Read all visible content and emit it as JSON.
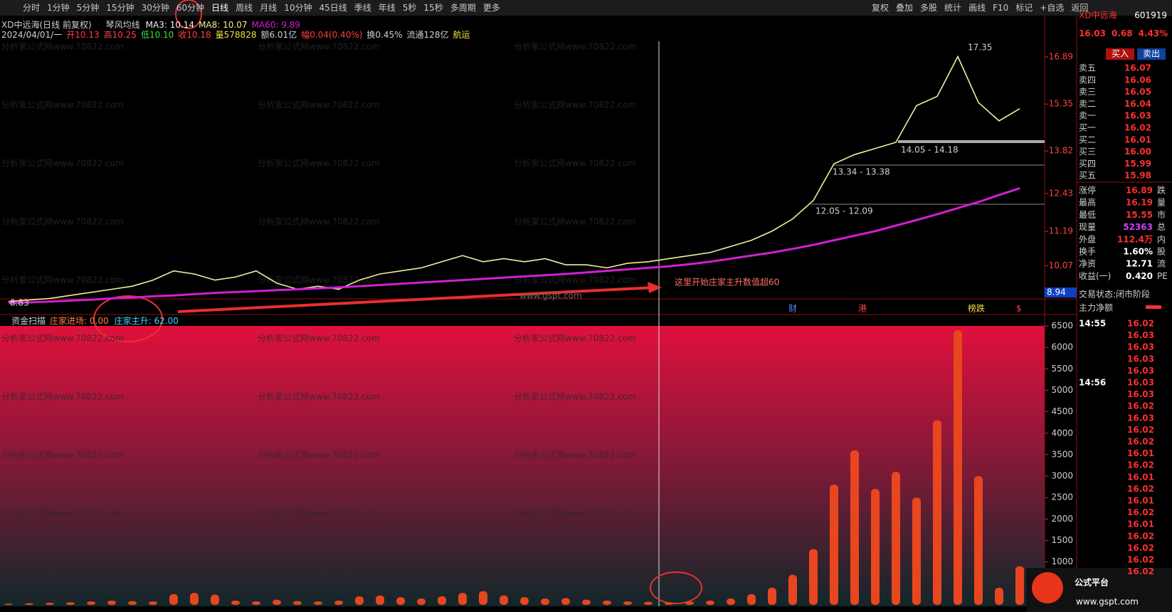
{
  "toolbar": {
    "periods": [
      "分时",
      "1分钟",
      "5分钟",
      "15分钟",
      "30分钟",
      "60分钟",
      "日线",
      "周线",
      "月线",
      "10分钟",
      "45日线",
      "季线",
      "年线",
      "5秒",
      "15秒",
      "多周期",
      "更多"
    ],
    "selected": 6,
    "right": [
      "复权",
      "叠加",
      "多股",
      "统计",
      "画线",
      "F10",
      "标记",
      "+自选",
      "返回"
    ]
  },
  "info": {
    "name": "XD中远海(日线 前复权)",
    "indicator": "琴风均线",
    "ma3": "MA3: 10.14",
    "ma8": "MA8: 10.07",
    "ma60": "MA60: 9.89",
    "bar": [
      "2024/04/01/一",
      "开10.13",
      "高10.25",
      "低10.10",
      "收10.18",
      "量578828",
      "额6.01亿",
      "幅0.04(0.40%)",
      "换0.45%",
      "流通128亿",
      "航运"
    ]
  },
  "annotations": {
    "high": "17.35",
    "range1": "14.05 - 14.18",
    "range2": "13.34 - 13.38",
    "range3": "12.05 - 12.09",
    "low": "8.83",
    "cursor_price": "8.94",
    "note": "这里开始庄家主升数值超60",
    "markers": [
      "财",
      "港",
      "榜跌",
      "$"
    ],
    "site": "www.gspt.com"
  },
  "watermark": "分析家公式网www.70822.com",
  "indicator_header": {
    "name": "资金扫描",
    "enter": "庄家进场: 0.00",
    "rise": "庄家主升: 62.00"
  },
  "quote": {
    "name": "XD中远海",
    "code": "601919",
    "price": "16.03",
    "change": "0.68",
    "pct": "4.43%",
    "buy": "买入",
    "sell": "卖出",
    "asks": [
      [
        "卖五",
        "16.07"
      ],
      [
        "卖四",
        "16.06"
      ],
      [
        "卖三",
        "16.05"
      ],
      [
        "卖二",
        "16.04"
      ],
      [
        "卖一",
        "16.03"
      ]
    ],
    "bids": [
      [
        "买一",
        "16.02"
      ],
      [
        "买二",
        "16.01"
      ],
      [
        "买三",
        "16.00"
      ],
      [
        "买四",
        "15.99"
      ],
      [
        "买五",
        "15.98"
      ]
    ],
    "stats": [
      [
        "涨停",
        "16.89",
        "跌"
      ],
      [
        "最高",
        "16.19",
        "量"
      ],
      [
        "最低",
        "15.55",
        "市"
      ],
      [
        "现量",
        "52363",
        "总"
      ],
      [
        "外盘",
        "112.4万",
        "内"
      ],
      [
        "换手",
        "1.60%",
        "股"
      ],
      [
        "净资",
        "12.71",
        "流"
      ],
      [
        "收益(一)",
        "0.420",
        "PE"
      ]
    ],
    "status": "交易状态:闭市阶段",
    "main": "主力净额",
    "ticks": [
      {
        "time": "14:55",
        "prices": [
          "16.02",
          "16.03",
          "16.03",
          "16.03",
          "16.03"
        ]
      },
      {
        "time": "14:56",
        "prices": [
          "16.03",
          "16.03",
          "16.02",
          "16.03",
          "16.02",
          "16.02",
          "16.01",
          "16.02",
          "16.01",
          "16.02",
          "16.01",
          "16.02",
          "16.01",
          "16.02",
          "16.02",
          "16.02",
          "16.02"
        ]
      }
    ]
  },
  "logo": {
    "name": "公式平台",
    "url": "www.gspt.com"
  },
  "chart_data": [
    {
      "type": "line",
      "ylim": [
        8.8,
        17.4
      ],
      "yticks": [
        10.07,
        11.19,
        12.43,
        13.82,
        15.35,
        16.89
      ],
      "grid": false,
      "series": [
        {
          "color": "#f0f0a0",
          "values": [
            8.9,
            8.95,
            9.0,
            9.1,
            9.2,
            9.3,
            9.4,
            9.6,
            9.9,
            9.8,
            9.6,
            9.7,
            9.9,
            9.5,
            9.3,
            9.4,
            9.3,
            9.6,
            9.8,
            9.9,
            10.0,
            10.2,
            10.4,
            10.2,
            10.3,
            10.2,
            10.3,
            10.1,
            10.1,
            10.0,
            10.15,
            10.2,
            10.3,
            10.4,
            10.5,
            10.7,
            10.9,
            11.2,
            11.6,
            12.2,
            13.4,
            13.7,
            13.9,
            14.1,
            15.3,
            15.6,
            16.9,
            15.4,
            14.8,
            15.2
          ]
        },
        {
          "color": "#d020d0",
          "values": [
            8.85,
            8.87,
            8.9,
            8.93,
            8.96,
            9.0,
            9.03,
            9.07,
            9.1,
            9.14,
            9.18,
            9.21,
            9.24,
            9.27,
            9.3,
            9.33,
            9.36,
            9.4,
            9.44,
            9.48,
            9.52,
            9.56,
            9.6,
            9.64,
            9.68,
            9.72,
            9.76,
            9.8,
            9.85,
            9.9,
            9.95,
            10.0,
            10.05,
            10.12,
            10.2,
            10.3,
            10.4,
            10.5,
            10.62,
            10.75,
            10.9,
            11.05,
            11.2,
            11.38,
            11.56,
            11.75,
            11.95,
            12.15,
            12.38,
            12.6
          ]
        }
      ]
    },
    {
      "type": "bar",
      "ylim": [
        0,
        6500
      ],
      "yticks": [
        1000,
        1500,
        2000,
        2500,
        3000,
        3500,
        4000,
        4500,
        5000,
        5500,
        6000,
        6500
      ],
      "color": "#e8461e",
      "values": [
        30,
        40,
        50,
        60,
        80,
        100,
        90,
        80,
        250,
        280,
        240,
        100,
        80,
        120,
        90,
        80,
        100,
        200,
        220,
        180,
        150,
        200,
        280,
        320,
        220,
        180,
        150,
        160,
        120,
        100,
        80,
        70,
        60,
        80,
        100,
        150,
        250,
        400,
        700,
        1300,
        2800,
        3600,
        2700,
        3100,
        2500,
        4300,
        6400,
        3000,
        400,
        900
      ]
    }
  ]
}
